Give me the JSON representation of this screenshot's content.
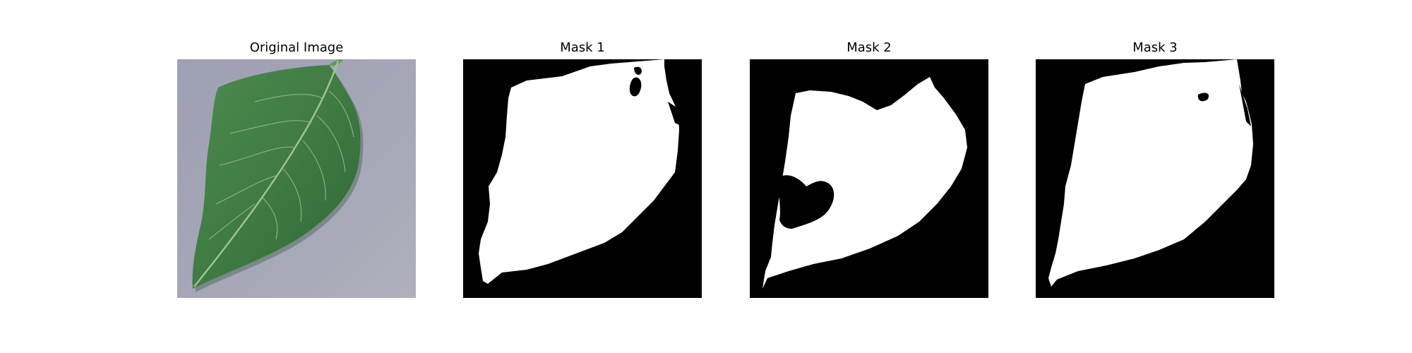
{
  "figure": {
    "panels": [
      {
        "title": "Original Image",
        "kind": "photo",
        "subject": "leaf-photo"
      },
      {
        "title": "Mask 1",
        "kind": "mask",
        "subject": "leaf-mask"
      },
      {
        "title": "Mask 2",
        "kind": "mask",
        "subject": "leaf-mask"
      },
      {
        "title": "Mask 3",
        "kind": "mask",
        "subject": "leaf-mask"
      }
    ],
    "colors": {
      "mask_background": "#000000",
      "mask_foreground": "#ffffff",
      "photo_background": "#a3a5b6",
      "leaf_green": "#3f7a43",
      "leaf_vein": "#a6c79a"
    }
  }
}
